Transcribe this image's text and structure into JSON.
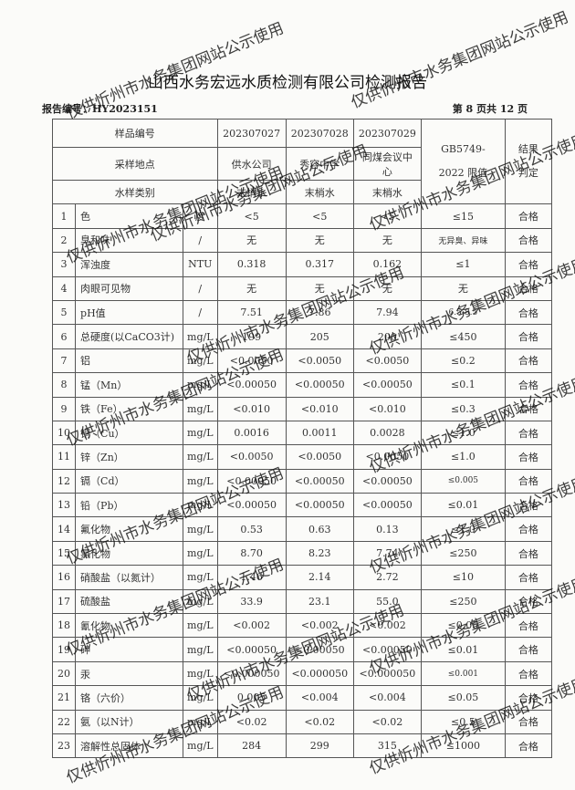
{
  "title": "山西水务宏远水质检测有限公司检测报告",
  "report_no": "报告编号：HY2023151",
  "page_info": "第 8 页共 12 页",
  "header": {
    "sample_no_label": "样品编号",
    "samples": [
      "202307027",
      "202307028",
      "202307029"
    ],
    "site_label": "采样地点",
    "sites": [
      "供水公司",
      "秀容中学",
      "同煤会议中心"
    ],
    "type_label": "水样类别",
    "types": [
      "末梢水",
      "末梢水",
      "末梢水"
    ],
    "limit_label": "GB5749-2022 限值",
    "result_label": "结果判定"
  },
  "rows": [
    [
      "1",
      "色",
      "度",
      "<5",
      "<5",
      "<5",
      "≤15",
      "合格"
    ],
    [
      "2",
      "臭和味",
      "/",
      "无",
      "无",
      "无",
      "无异臭、异味",
      "合格"
    ],
    [
      "3",
      "浑浊度",
      "NTU",
      "0.318",
      "0.317",
      "0.162",
      "≤1",
      "合格"
    ],
    [
      "4",
      "肉眼可见物",
      "/",
      "无",
      "无",
      "无",
      "无",
      "合格"
    ],
    [
      "5",
      "pH值",
      "/",
      "7.51",
      "7.86",
      "7.94",
      "6.5-8.5",
      "合格"
    ],
    [
      "6",
      "总硬度(以CaCO3计)",
      "mg/L",
      "199",
      "205",
      "200",
      "≤450",
      "合格"
    ],
    [
      "7",
      "铝",
      "mg/L",
      "<0.0050",
      "<0.0050",
      "<0.0050",
      "≤0.2",
      "合格"
    ],
    [
      "8",
      "锰（Mn）",
      "mg/L",
      "<0.00050",
      "<0.00050",
      "<0.00050",
      "≤0.1",
      "合格"
    ],
    [
      "9",
      "铁（Fe）",
      "mg/L",
      "<0.010",
      "<0.010",
      "<0.010",
      "≤0.3",
      "合格"
    ],
    [
      "10",
      "铜（Cu）",
      "mg/L",
      "0.0016",
      "0.0011",
      "0.0028",
      "≤1.0",
      "合格"
    ],
    [
      "11",
      "锌（Zn）",
      "mg/L",
      "<0.0050",
      "<0.0050",
      "<0.0050",
      "≤1.0",
      "合格"
    ],
    [
      "12",
      "镉（Cd）",
      "mg/L",
      "<0.00050",
      "<0.00050",
      "<0.00050",
      "≤0.005",
      "合格"
    ],
    [
      "13",
      "铅（Pb）",
      "mg/L",
      "<0.00050",
      "<0.00050",
      "<0.00050",
      "≤0.01",
      "合格"
    ],
    [
      "14",
      "氟化物",
      "mg/L",
      "0.53",
      "0.63",
      "0.13",
      "≤1.0",
      "合格"
    ],
    [
      "15",
      "氯化物",
      "mg/L",
      "8.70",
      "8.23",
      "7.74",
      "≤250",
      "合格"
    ],
    [
      "16",
      "硝酸盐（以氮计）",
      "mg/L",
      "1.46",
      "2.14",
      "2.72",
      "≤10",
      "合格"
    ],
    [
      "17",
      "硫酸盐",
      "mg/L",
      "33.9",
      "23.1",
      "55.0",
      "≤250",
      "合格"
    ],
    [
      "18",
      "氰化物",
      "mg/L",
      "<0.002",
      "<0.002",
      "<0.002",
      "≤0.05",
      "合格"
    ],
    [
      "19",
      "砷",
      "mg/L",
      "<0.00050",
      "<0.00050",
      "<0.00050",
      "≤0.01",
      "合格"
    ],
    [
      "20",
      "汞",
      "mg/L",
      "<0.000050",
      "<0.000050",
      "<0.000050",
      "≤0.001",
      "合格"
    ],
    [
      "21",
      "铬（六价）",
      "mg/L",
      "0.005",
      "<0.004",
      "<0.004",
      "≤0.05",
      "合格"
    ],
    [
      "22",
      "氨（以N计）",
      "mg/L",
      "<0.02",
      "<0.02",
      "<0.02",
      "≤0.5",
      "合格"
    ],
    [
      "23",
      "溶解性总固体",
      "mg/L",
      "284",
      "299",
      "315",
      "≤1000",
      "合格"
    ]
  ],
  "watermark": "仅供忻州市水务集团网站公示使用"
}
